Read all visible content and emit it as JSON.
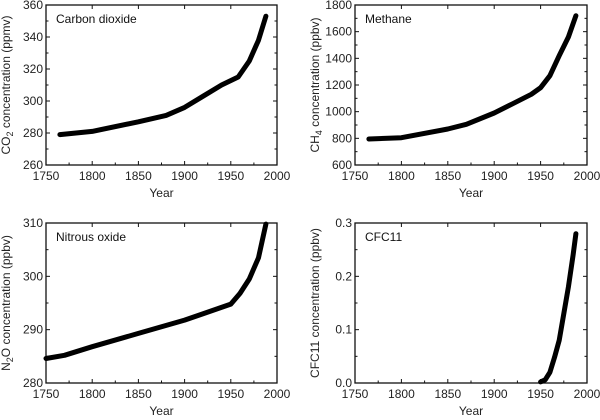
{
  "chart_data": [
    {
      "type": "line",
      "title": "Carbon dioxide",
      "xlabel": "Year",
      "ylabel": {
        "prefix": "CO",
        "sub": "2",
        "suffix": " concentration (ppmv)"
      },
      "xlim": [
        1750,
        2000
      ],
      "ylim": [
        260,
        360
      ],
      "xticks": [
        1750,
        1800,
        1850,
        1900,
        1950,
        2000
      ],
      "yticks": [
        260,
        280,
        300,
        320,
        340,
        360
      ],
      "x": [
        1765,
        1800,
        1850,
        1880,
        1900,
        1920,
        1940,
        1958,
        1970,
        1980,
        1988
      ],
      "y": [
        279,
        281,
        287,
        291,
        296,
        303,
        310,
        315,
        325,
        338,
        353
      ]
    },
    {
      "type": "line",
      "title": "Methane",
      "xlabel": "Year",
      "ylabel": {
        "prefix": "CH",
        "sub": "4",
        "suffix": " concentration (ppbv)"
      },
      "xlim": [
        1750,
        2000
      ],
      "ylim": [
        600,
        1800
      ],
      "xticks": [
        1750,
        1800,
        1850,
        1900,
        1950,
        2000
      ],
      "yticks": [
        600,
        800,
        1000,
        1200,
        1400,
        1600,
        1800
      ],
      "x": [
        1765,
        1800,
        1850,
        1870,
        1900,
        1920,
        1940,
        1950,
        1960,
        1970,
        1980,
        1988
      ],
      "y": [
        795,
        805,
        870,
        905,
        990,
        1060,
        1130,
        1180,
        1270,
        1420,
        1560,
        1720
      ]
    },
    {
      "type": "line",
      "title": "Nitrous oxide",
      "xlabel": "Year",
      "ylabel": {
        "prefix": "N",
        "sub": "2",
        "suffix": "O concentration (ppbv)"
      },
      "xlim": [
        1750,
        2000
      ],
      "ylim": [
        280,
        310
      ],
      "xticks": [
        1750,
        1800,
        1850,
        1900,
        1950,
        2000
      ],
      "yticks": [
        280,
        290,
        300,
        310
      ],
      "x": [
        1750,
        1770,
        1800,
        1850,
        1900,
        1920,
        1950,
        1960,
        1970,
        1980,
        1988
      ],
      "y": [
        284.6,
        285.2,
        286.8,
        289.3,
        291.8,
        293,
        294.8,
        296.8,
        299.5,
        303.5,
        309.8
      ]
    },
    {
      "type": "line",
      "title": "CFC11",
      "xlabel": "Year",
      "ylabel": {
        "prefix": "CFC11 concentration (ppbv)",
        "sub": "",
        "suffix": ""
      },
      "xlim": [
        1750,
        2000
      ],
      "ylim": [
        0,
        0.3
      ],
      "xticks": [
        1750,
        1800,
        1850,
        1900,
        1950,
        2000
      ],
      "yticks": [
        "0.0",
        "0.1",
        "0.2",
        "0.3"
      ],
      "x": [
        1950,
        1955,
        1960,
        1965,
        1970,
        1975,
        1980,
        1985,
        1988
      ],
      "y": [
        0.002,
        0.006,
        0.02,
        0.048,
        0.08,
        0.13,
        0.18,
        0.24,
        0.28
      ]
    }
  ]
}
